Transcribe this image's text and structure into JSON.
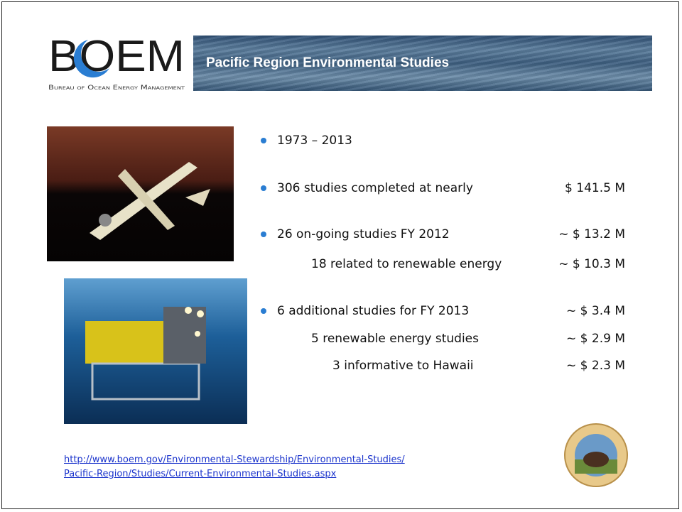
{
  "header": {
    "logo": "BOEM",
    "logo_subtitle": "Bureau of Ocean Energy Management",
    "title": "Pacific Region Environmental Studies"
  },
  "bullets": [
    {
      "text": "1973 – 2013"
    },
    {
      "text": "306 studies completed at nearly",
      "amount": "$ 141.5 M"
    },
    {
      "text": "26 on-going studies FY 2012",
      "amount": "~ $ 13.2 M",
      "sub": [
        {
          "text": "18 related to renewable energy",
          "amount": "~ $ 10.3 M"
        }
      ]
    },
    {
      "text": "6 additional studies for FY 2013",
      "amount": "~ $ 3.4 M",
      "sub": [
        {
          "text": "5 renewable energy studies",
          "amount": "~ $ 2.9 M"
        },
        {
          "text": "3 informative to Hawaii",
          "amount": "~ $ 2.3 M"
        }
      ]
    }
  ],
  "link": [
    "http://www.boem.gov/Environmental-Stewardship/Environmental-Studies/",
    "Pacific-Region/Studies/Current-Environmental-Studies.aspx"
  ]
}
